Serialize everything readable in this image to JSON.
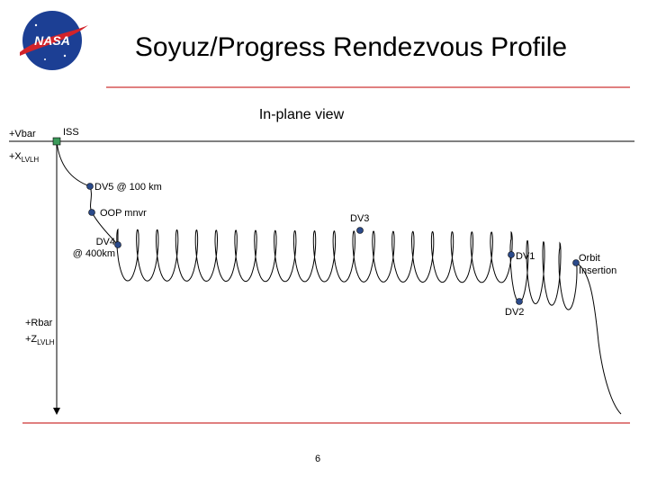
{
  "header": {
    "logo": "NASA",
    "title": "Soyuz/Progress Rendezvous Profile"
  },
  "diagram": {
    "view": "In-plane view",
    "axes": {
      "vbar": "+Vbar",
      "x_lvlh": {
        "main": "+X",
        "sub": "LVLH"
      },
      "rbar": "+Rbar",
      "z_lvlh": {
        "main": "+Z",
        "sub": "LVLH"
      }
    },
    "points": {
      "iss": "ISS",
      "dv5": "DV5 @ 100 km",
      "oop": "OOP mnvr",
      "dv3": "DV3",
      "dv4": [
        "DV4",
        "@ 400km"
      ],
      "dv1": "DV1",
      "orbit_insertion": [
        "Orbit",
        "Insertion"
      ],
      "dv2": "DV2"
    }
  },
  "footer": {
    "page": "6"
  }
}
